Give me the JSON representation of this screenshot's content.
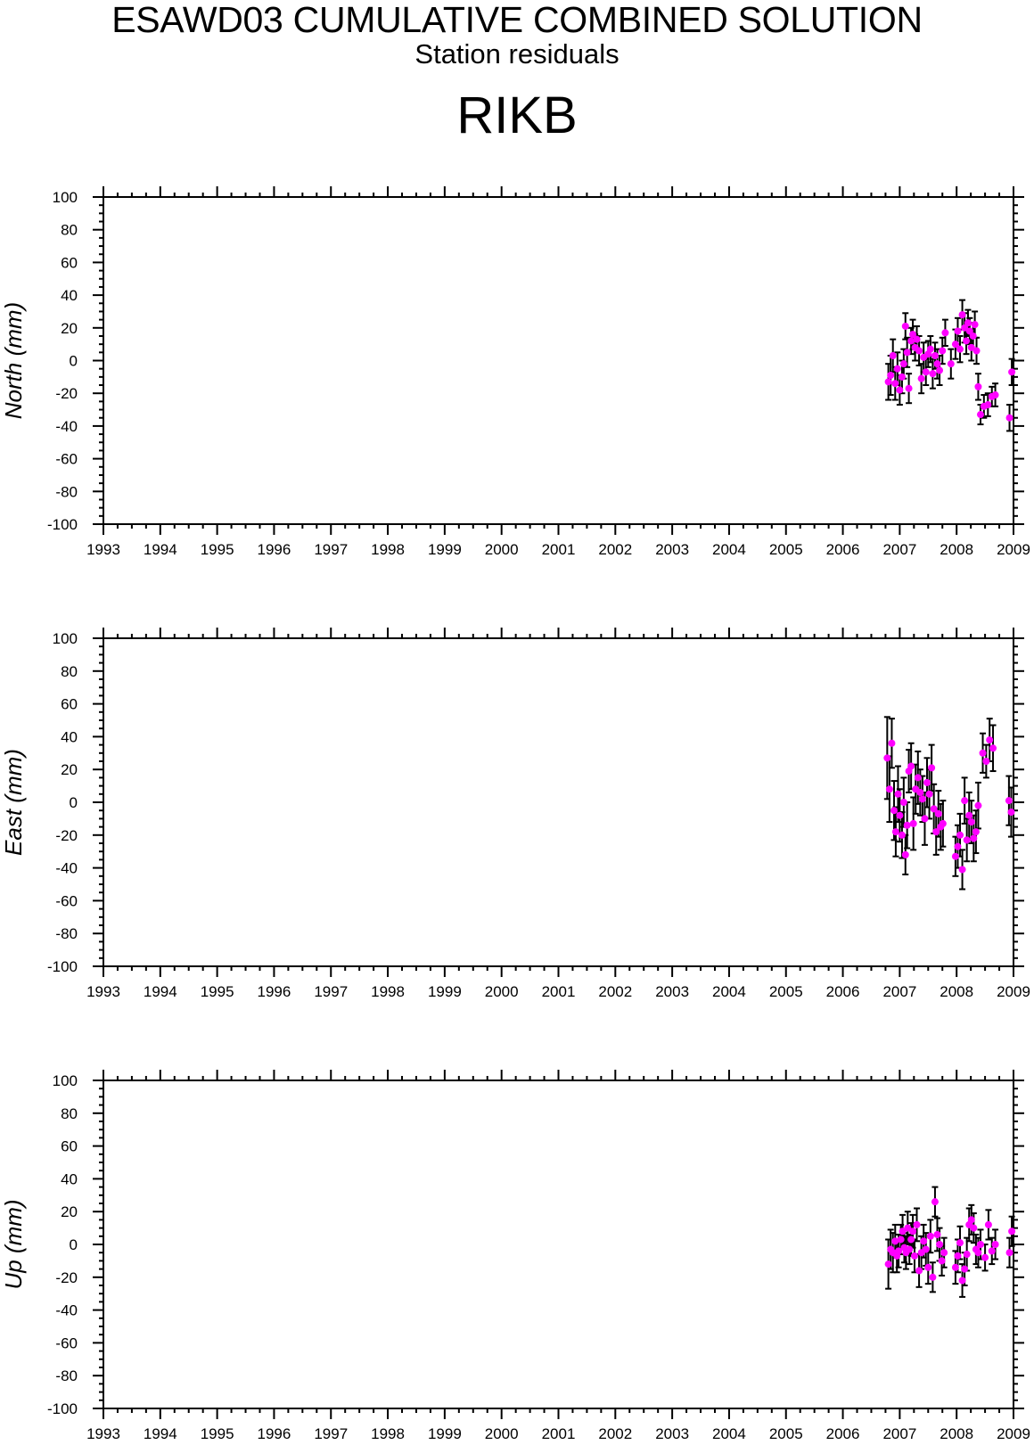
{
  "header": {
    "title": "ESAWD03 CUMULATIVE COMBINED SOLUTION",
    "subtitle": "Station residuals",
    "station": "RIKB"
  },
  "style": {
    "point_color": "#ff00ff",
    "errorbar_color": "#000000"
  },
  "chart_data": [
    {
      "type": "scatter",
      "ylabel": "North (mm)",
      "xlim": [
        1993,
        2009
      ],
      "ylim": [
        -100,
        100
      ],
      "x_tick_labels": [
        "1993",
        "1994",
        "1995",
        "1996",
        "1997",
        "1998",
        "1999",
        "2000",
        "2001",
        "2002",
        "2003",
        "2004",
        "2005",
        "2006",
        "2007",
        "2008",
        "2009"
      ],
      "y_tick_labels": [
        "-100",
        "-80",
        "-60",
        "-40",
        "-20",
        "0",
        "20",
        "40",
        "60",
        "80",
        "100"
      ],
      "series": [
        {
          "x": [
            2006.8,
            2006.84,
            2006.88,
            2006.92,
            2006.96,
            2007.0,
            2007.04,
            2007.07,
            2007.1,
            2007.13,
            2007.16,
            2007.2,
            2007.23,
            2007.27,
            2007.3,
            2007.34,
            2007.38,
            2007.42,
            2007.46,
            2007.5,
            2007.54,
            2007.58,
            2007.62,
            2007.66,
            2007.7,
            2007.75,
            2007.8,
            2007.9,
            2007.98,
            2008.02,
            2008.06,
            2008.1,
            2008.14,
            2008.17,
            2008.2,
            2008.23,
            2008.26,
            2008.29,
            2008.32,
            2008.35,
            2008.38,
            2008.42,
            2008.48,
            2008.55,
            2008.62,
            2008.68,
            2008.93,
            2008.97
          ],
          "y": [
            -13,
            -9,
            3,
            -14,
            -5,
            -18,
            -10,
            -2,
            21,
            5,
            -17,
            12,
            16,
            8,
            13,
            6,
            -11,
            2,
            -7,
            4,
            7,
            -8,
            3,
            -2,
            -6,
            6,
            17,
            -2,
            10,
            18,
            7,
            28,
            20,
            12,
            23,
            18,
            8,
            15,
            22,
            6,
            -16,
            -33,
            -28,
            -27,
            -22,
            -21,
            -35,
            -7
          ],
          "err": [
            11,
            12,
            10,
            10,
            10,
            9,
            10,
            9,
            8,
            9,
            9,
            8,
            9,
            8,
            8,
            9,
            9,
            9,
            8,
            8,
            8,
            9,
            8,
            9,
            9,
            8,
            8,
            9,
            9,
            8,
            8,
            9,
            9,
            8,
            8,
            8,
            8,
            8,
            8,
            8,
            8,
            6,
            7,
            7,
            6,
            7,
            8,
            8
          ]
        }
      ]
    },
    {
      "type": "scatter",
      "ylabel": "East (mm)",
      "xlim": [
        1993,
        2009
      ],
      "ylim": [
        -100,
        100
      ],
      "x_tick_labels": [
        "1993",
        "1994",
        "1995",
        "1996",
        "1997",
        "1998",
        "1999",
        "2000",
        "2001",
        "2002",
        "2003",
        "2004",
        "2005",
        "2006",
        "2007",
        "2008",
        "2009"
      ],
      "y_tick_labels": [
        "-100",
        "-80",
        "-60",
        "-40",
        "-20",
        "0",
        "20",
        "40",
        "60",
        "80",
        "100"
      ],
      "series": [
        {
          "x": [
            2006.78,
            2006.82,
            2006.86,
            2006.9,
            2006.93,
            2006.97,
            2007.0,
            2007.04,
            2007.07,
            2007.1,
            2007.13,
            2007.16,
            2007.2,
            2007.24,
            2007.28,
            2007.32,
            2007.36,
            2007.4,
            2007.44,
            2007.48,
            2007.52,
            2007.56,
            2007.6,
            2007.64,
            2007.68,
            2007.72,
            2007.76,
            2007.98,
            2008.02,
            2008.06,
            2008.1,
            2008.14,
            2008.18,
            2008.22,
            2008.26,
            2008.3,
            2008.34,
            2008.38,
            2008.46,
            2008.52,
            2008.58,
            2008.64,
            2008.92,
            2008.96
          ],
          "y": [
            27,
            8,
            36,
            -5,
            -18,
            5,
            -8,
            -20,
            0,
            -32,
            -14,
            19,
            22,
            -13,
            8,
            15,
            6,
            2,
            -10,
            12,
            5,
            21,
            -4,
            -18,
            -7,
            -15,
            -13,
            -33,
            -27,
            -20,
            -41,
            1,
            -23,
            -8,
            -12,
            -22,
            -18,
            -2,
            30,
            25,
            38,
            33,
            1,
            -6
          ],
          "err": [
            25,
            20,
            15,
            18,
            15,
            17,
            16,
            14,
            15,
            12,
            14,
            13,
            14,
            16,
            15,
            16,
            14,
            14,
            16,
            15,
            15,
            14,
            15,
            14,
            14,
            14,
            14,
            12,
            13,
            13,
            12,
            14,
            13,
            14,
            13,
            14,
            13,
            14,
            12,
            10,
            13,
            14,
            15,
            15
          ]
        }
      ]
    },
    {
      "type": "scatter",
      "ylabel": "Up (mm)",
      "xlim": [
        1993,
        2009
      ],
      "ylim": [
        -100,
        100
      ],
      "x_tick_labels": [
        "1993",
        "1994",
        "1995",
        "1996",
        "1997",
        "1998",
        "1999",
        "2000",
        "2001",
        "2002",
        "2003",
        "2004",
        "2005",
        "2006",
        "2007",
        "2008",
        "2009"
      ],
      "y_tick_labels": [
        "-100",
        "-80",
        "-60",
        "-40",
        "-20",
        "0",
        "20",
        "40",
        "60",
        "80",
        "100"
      ],
      "series": [
        {
          "x": [
            2006.8,
            2006.84,
            2006.88,
            2006.92,
            2006.95,
            2006.98,
            2007.02,
            2007.05,
            2007.08,
            2007.11,
            2007.14,
            2007.17,
            2007.2,
            2007.23,
            2007.26,
            2007.3,
            2007.34,
            2007.38,
            2007.42,
            2007.46,
            2007.5,
            2007.54,
            2007.58,
            2007.62,
            2007.66,
            2007.7,
            2007.74,
            2007.78,
            2007.98,
            2008.02,
            2008.06,
            2008.1,
            2008.14,
            2008.18,
            2008.22,
            2008.26,
            2008.3,
            2008.34,
            2008.38,
            2008.42,
            2008.5,
            2008.56,
            2008.62,
            2008.68,
            2008.93,
            2008.97
          ],
          "y": [
            -12,
            -3,
            -5,
            2,
            -7,
            -4,
            3,
            8,
            -2,
            -5,
            10,
            -3,
            3,
            8,
            -7,
            12,
            -16,
            -5,
            2,
            -3,
            -14,
            5,
            -20,
            26,
            6,
            0,
            -10,
            -5,
            -14,
            -7,
            1,
            -22,
            -15,
            -6,
            12,
            15,
            10,
            -3,
            -5,
            0,
            -8,
            12,
            -4,
            0,
            -5,
            8
          ],
          "err": [
            15,
            12,
            12,
            10,
            10,
            10,
            9,
            10,
            9,
            10,
            10,
            9,
            10,
            10,
            10,
            10,
            10,
            10,
            10,
            10,
            10,
            10,
            9,
            9,
            10,
            10,
            9,
            9,
            10,
            10,
            10,
            10,
            10,
            10,
            10,
            9,
            9,
            9,
            9,
            9,
            8,
            9,
            8,
            9,
            9,
            9
          ]
        }
      ]
    }
  ]
}
